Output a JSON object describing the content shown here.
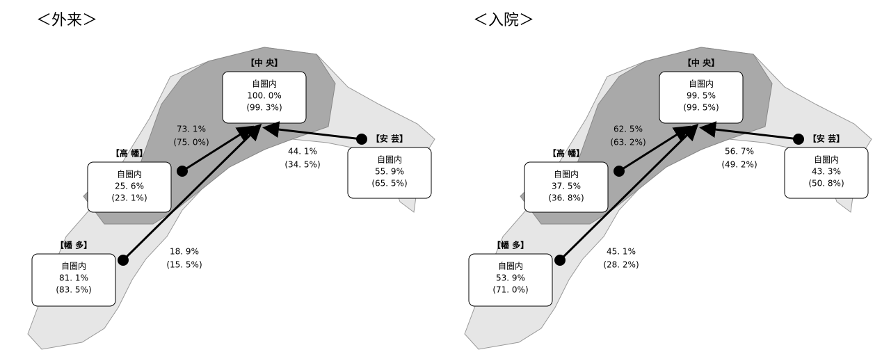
{
  "panels": [
    {
      "title": "＜外来＞",
      "regions": [
        {
          "name": "【中 央】",
          "lines": [
            "自圏内",
            "100. 0%",
            "(99. 3%)"
          ]
        },
        {
          "name": "【高 幡】",
          "lines": [
            "自圏内",
            "25. 6%",
            "(23. 1%)"
          ]
        },
        {
          "name": "【安 芸】",
          "lines": [
            "自圏内",
            "55. 9%",
            "(65. 5%)"
          ]
        },
        {
          "name": "【幡 多】",
          "lines": [
            "自圏内",
            "81. 1%",
            "(83. 5%)"
          ]
        }
      ],
      "flows": [
        {
          "lines": [
            "73. 1%",
            "(75. 0%)"
          ]
        },
        {
          "lines": [
            "44. 1%",
            "(34. 5%)"
          ]
        },
        {
          "lines": [
            "18. 9%",
            "(15. 5%)"
          ]
        }
      ]
    },
    {
      "title": "＜入院＞",
      "regions": [
        {
          "name": "【中 央】",
          "lines": [
            "自圏内",
            "99. 5%",
            "(99. 5%)"
          ]
        },
        {
          "name": "【高 幡】",
          "lines": [
            "自圏内",
            "37. 5%",
            "(36. 8%)"
          ]
        },
        {
          "name": "【安 芸】",
          "lines": [
            "自圏内",
            "43. 3%",
            "(50. 8%)"
          ]
        },
        {
          "name": "【幡 多】",
          "lines": [
            "自圏内",
            "53. 9%",
            "(71. 0%)"
          ]
        }
      ],
      "flows": [
        {
          "lines": [
            "62. 5%",
            "(63. 2%)"
          ]
        },
        {
          "lines": [
            "56. 7%",
            "(49. 2%)"
          ]
        },
        {
          "lines": [
            "45. 1%",
            "(28. 2%)"
          ]
        }
      ]
    }
  ]
}
